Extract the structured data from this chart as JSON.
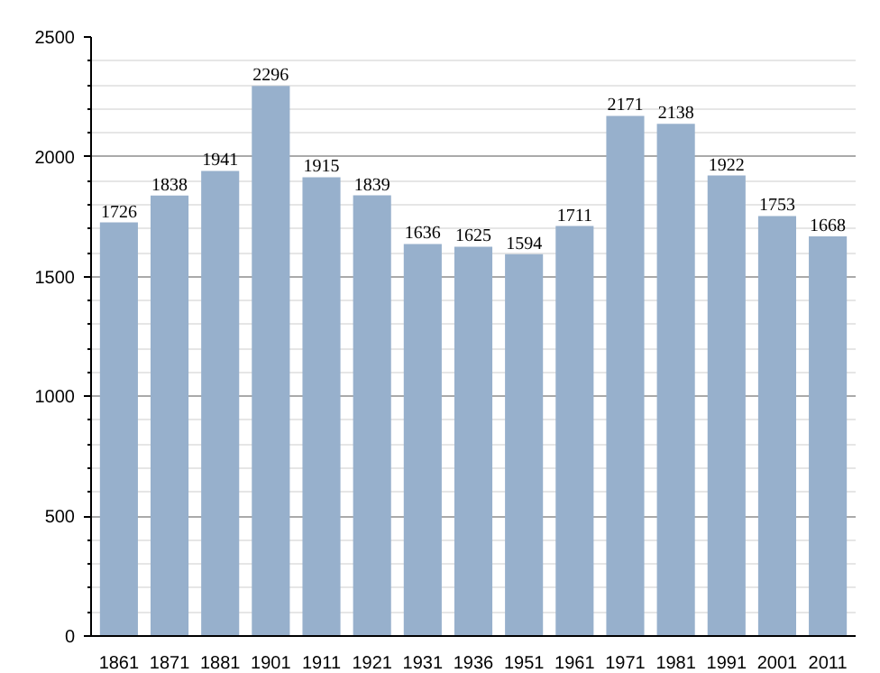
{
  "chart_data": {
    "type": "bar",
    "categories": [
      "1861",
      "1871",
      "1881",
      "1901",
      "1911",
      "1921",
      "1931",
      "1936",
      "1951",
      "1961",
      "1971",
      "1981",
      "1991",
      "2001",
      "2011"
    ],
    "values": [
      1726,
      1838,
      1941,
      2296,
      1915,
      1839,
      1636,
      1625,
      1594,
      1711,
      2171,
      2138,
      1922,
      1753,
      1668
    ],
    "color": "#97b0cc",
    "ylim": [
      0,
      2500
    ],
    "yticks": [
      0,
      500,
      1000,
      1500,
      2000,
      2500
    ],
    "grid": "y",
    "data_labels": true
  }
}
